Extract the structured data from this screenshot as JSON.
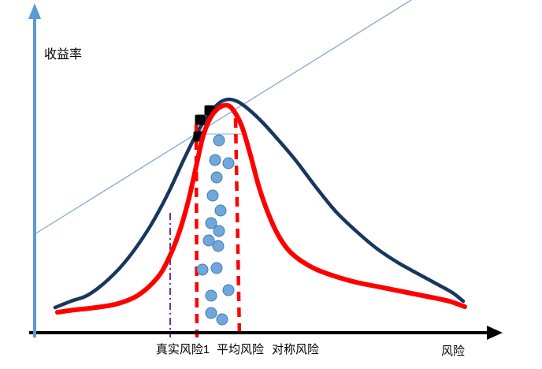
{
  "window": {
    "background": "#FFFFFF"
  },
  "labels": {
    "y_axis": "收益率",
    "x_axis": "风险",
    "ticks": [
      "真实风险1",
      "平均风险",
      "对称风险"
    ]
  },
  "chart_data": {
    "type": "line",
    "title": "",
    "xlabel": "风险",
    "ylabel": "收益率",
    "x_tick_labels": [
      "真实风险1",
      "平均风险",
      "对称风险"
    ],
    "legend": "none",
    "grid": false,
    "axes": {
      "y": {
        "x": 44,
        "y_top": 20,
        "y_bottom": 428,
        "color": "#5B9BD5",
        "width": 4,
        "arrow": [
          [
            44,
            4
          ],
          [
            36,
            24
          ],
          [
            52,
            24
          ]
        ]
      },
      "x": {
        "y": 422,
        "x_left": 37,
        "x_right": 620,
        "color": "#000000",
        "width": 4,
        "arrow": [
          [
            638,
            422
          ],
          [
            618,
            413
          ],
          [
            618,
            431
          ]
        ]
      }
    },
    "series": [
      {
        "name": "capital-market-line",
        "color": "#87A9D2",
        "width": 1.3,
        "smooth": false,
        "points": [
          [
            44,
            297
          ],
          [
            522,
            0
          ]
        ]
      },
      {
        "name": "wide-risk-distribution-curve",
        "color": "#17375E",
        "width": 4.5,
        "smooth": true,
        "points": [
          [
            70,
            390
          ],
          [
            90,
            382
          ],
          [
            112,
            374
          ],
          [
            138,
            354
          ],
          [
            163,
            327
          ],
          [
            190,
            288
          ],
          [
            213,
            246
          ],
          [
            233,
            203
          ],
          [
            251,
            167
          ],
          [
            266,
            144
          ],
          [
            279,
            130
          ],
          [
            290,
            126
          ],
          [
            302,
            129
          ],
          [
            316,
            139
          ],
          [
            333,
            155
          ],
          [
            352,
            176
          ],
          [
            375,
            203
          ],
          [
            400,
            236
          ],
          [
            426,
            268
          ],
          [
            452,
            293
          ],
          [
            478,
            315
          ],
          [
            505,
            333
          ],
          [
            532,
            348
          ],
          [
            556,
            361
          ],
          [
            574,
            371
          ],
          [
            588,
            382
          ]
        ]
      },
      {
        "name": "narrow-risk-distribution-curve",
        "color": "#FF0000",
        "width": 6,
        "smooth": true,
        "points": [
          [
            73,
            396
          ],
          [
            95,
            393
          ],
          [
            122,
            390
          ],
          [
            150,
            385
          ],
          [
            176,
            374
          ],
          [
            200,
            352
          ],
          [
            214,
            328
          ],
          [
            227,
            296
          ],
          [
            239,
            255
          ],
          [
            249,
            211
          ],
          [
            258,
            172
          ],
          [
            268,
            148
          ],
          [
            279,
            136
          ],
          [
            290,
            134
          ],
          [
            299,
            144
          ],
          [
            308,
            163
          ],
          [
            318,
            197
          ],
          [
            329,
            238
          ],
          [
            341,
            272
          ],
          [
            353,
            298
          ],
          [
            366,
            317
          ],
          [
            381,
            330
          ],
          [
            400,
            341
          ],
          [
            424,
            350
          ],
          [
            452,
            358
          ],
          [
            482,
            364
          ],
          [
            512,
            370
          ],
          [
            542,
            376
          ],
          [
            570,
            382
          ],
          [
            590,
            389
          ]
        ]
      }
    ],
    "guides": [
      {
        "name": "peak-reference-line",
        "color": "#A9BCD6",
        "width": 1.3,
        "dash": "",
        "x1": 256,
        "y1": 170,
        "x2": 312,
        "y2": 170
      },
      {
        "name": "true-risk-dashdot-line",
        "color": "#7030A0",
        "width": 2,
        "dash": "9 4 2 4",
        "x1": 216,
        "y1": 270,
        "x2": 216,
        "y2": 428
      },
      {
        "name": "left-boundary-dashed-line",
        "color": "#FF0000",
        "width": 4.5,
        "dash": "12 8",
        "x1": 249,
        "y1": 158,
        "x2": 250,
        "y2": 428
      },
      {
        "name": "right-boundary-dashed-line",
        "color": "#FF0000",
        "width": 4.5,
        "dash": "12 8",
        "x1": 299,
        "y1": 150,
        "x2": 304,
        "y2": 428
      }
    ],
    "scatter_dots": {
      "fill": "#6FA8DC",
      "stroke": "#4779B0",
      "radius": 7,
      "points": [
        [
          278,
          178
        ],
        [
          273,
          203
        ],
        [
          290,
          207
        ],
        [
          275,
          225
        ],
        [
          270,
          248
        ],
        [
          280,
          267
        ],
        [
          268,
          283
        ],
        [
          278,
          293
        ],
        [
          265,
          305
        ],
        [
          277,
          312
        ],
        [
          275,
          340
        ],
        [
          257,
          342
        ],
        [
          290,
          368
        ],
        [
          268,
          375
        ],
        [
          268,
          397
        ],
        [
          282,
          405
        ]
      ]
    },
    "square_markers": {
      "color": "#000000",
      "size": 13,
      "corner_radius": 2,
      "centers": [
        [
          266,
          140
        ],
        [
          254,
          152
        ],
        [
          252,
          173
        ]
      ]
    }
  }
}
